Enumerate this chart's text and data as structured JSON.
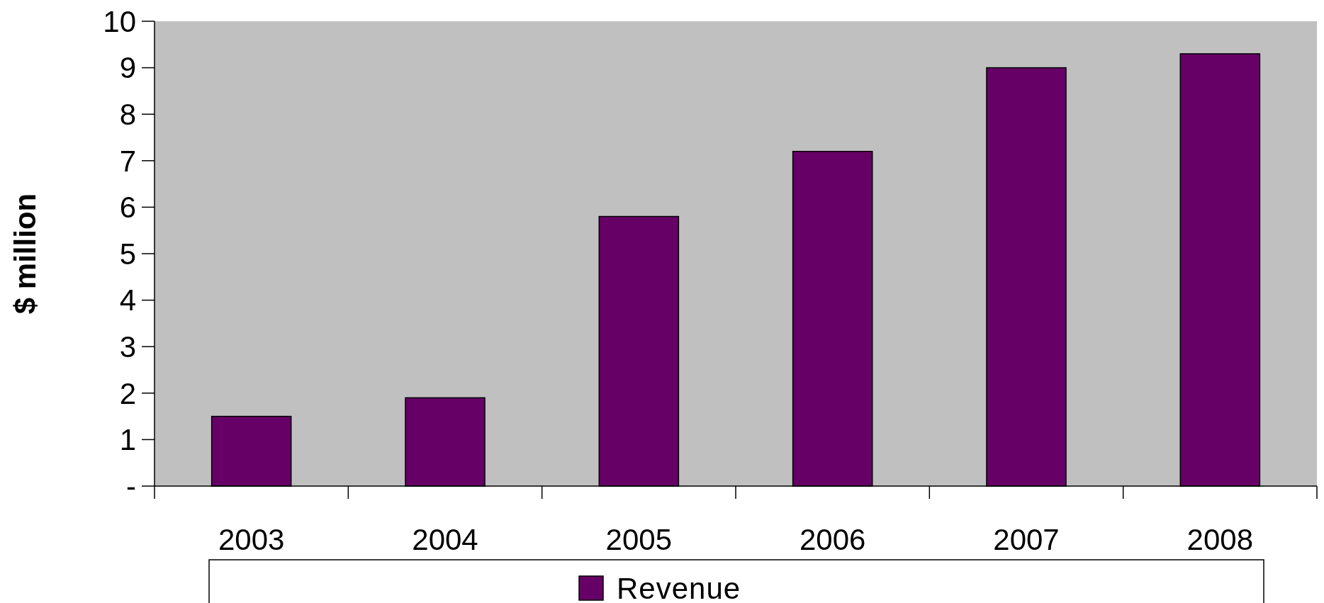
{
  "chart_data": {
    "type": "bar",
    "ylabel": "$ million",
    "categories": [
      "2003",
      "2004",
      "2005",
      "2006",
      "2007",
      "2008"
    ],
    "series": [
      {
        "name": "Revenue",
        "color": "#660066",
        "values": [
          1.5,
          1.9,
          5.8,
          7.2,
          9.0,
          9.3
        ]
      }
    ],
    "ylim": [
      0,
      10
    ],
    "yticks": [
      {
        "value": 0,
        "label": "-"
      },
      1,
      2,
      3,
      4,
      5,
      6,
      7,
      8,
      9,
      10
    ],
    "grid": false,
    "legend": "bottom"
  }
}
